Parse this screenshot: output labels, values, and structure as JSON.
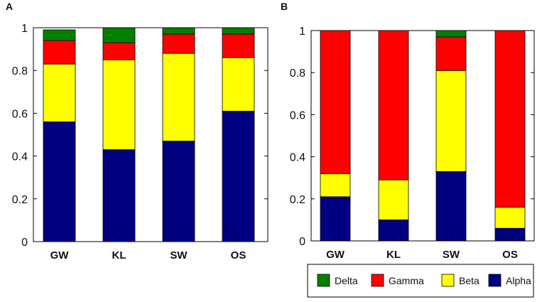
{
  "chart_data": [
    {
      "type": "bar",
      "stacked": true,
      "panel_label": "A",
      "categories": [
        "GW",
        "KL",
        "SW",
        "OS"
      ],
      "series": [
        {
          "name": "Alpha",
          "color": "#000080",
          "values": [
            0.56,
            0.43,
            0.47,
            0.61
          ]
        },
        {
          "name": "Beta",
          "color": "#ffff00",
          "values": [
            0.27,
            0.42,
            0.41,
            0.25
          ]
        },
        {
          "name": "Gamma",
          "color": "#ff0000",
          "values": [
            0.11,
            0.08,
            0.09,
            0.11
          ]
        },
        {
          "name": "Delta",
          "color": "#008000",
          "values": [
            0.05,
            0.07,
            0.03,
            0.03
          ]
        }
      ],
      "ylim": [
        0,
        1
      ],
      "yticks": [
        "0",
        "0.2",
        "0.4",
        "0.6",
        "0.8",
        "1"
      ],
      "ytick_values": [
        0,
        0.2,
        0.4,
        0.6,
        0.8,
        1
      ],
      "title": "",
      "xlabel": "",
      "ylabel": ""
    },
    {
      "type": "bar",
      "stacked": true,
      "panel_label": "B",
      "categories": [
        "GW",
        "KL",
        "SW",
        "OS"
      ],
      "series": [
        {
          "name": "Alpha",
          "color": "#000080",
          "values": [
            0.21,
            0.1,
            0.33,
            0.06
          ]
        },
        {
          "name": "Beta",
          "color": "#ffff00",
          "values": [
            0.11,
            0.19,
            0.48,
            0.1
          ]
        },
        {
          "name": "Gamma",
          "color": "#ff0000",
          "values": [
            0.68,
            0.71,
            0.16,
            0.84
          ]
        },
        {
          "name": "Delta",
          "color": "#008000",
          "values": [
            0.0,
            0.0,
            0.03,
            0.0
          ]
        }
      ],
      "ylim": [
        0,
        1
      ],
      "yticks": [
        "0",
        "0.2",
        "0.4",
        "0.6",
        "0.8",
        "1"
      ],
      "ytick_values": [
        0,
        0.2,
        0.4,
        0.6,
        0.8,
        1
      ],
      "title": "",
      "xlabel": "",
      "ylabel": ""
    }
  ],
  "legend": {
    "placement": "bottom-right",
    "entries": [
      {
        "label": "Delta",
        "color": "#008000"
      },
      {
        "label": "Gamma",
        "color": "#ff0000"
      },
      {
        "label": "Beta",
        "color": "#ffff00"
      },
      {
        "label": "Alpha",
        "color": "#000080"
      }
    ]
  }
}
